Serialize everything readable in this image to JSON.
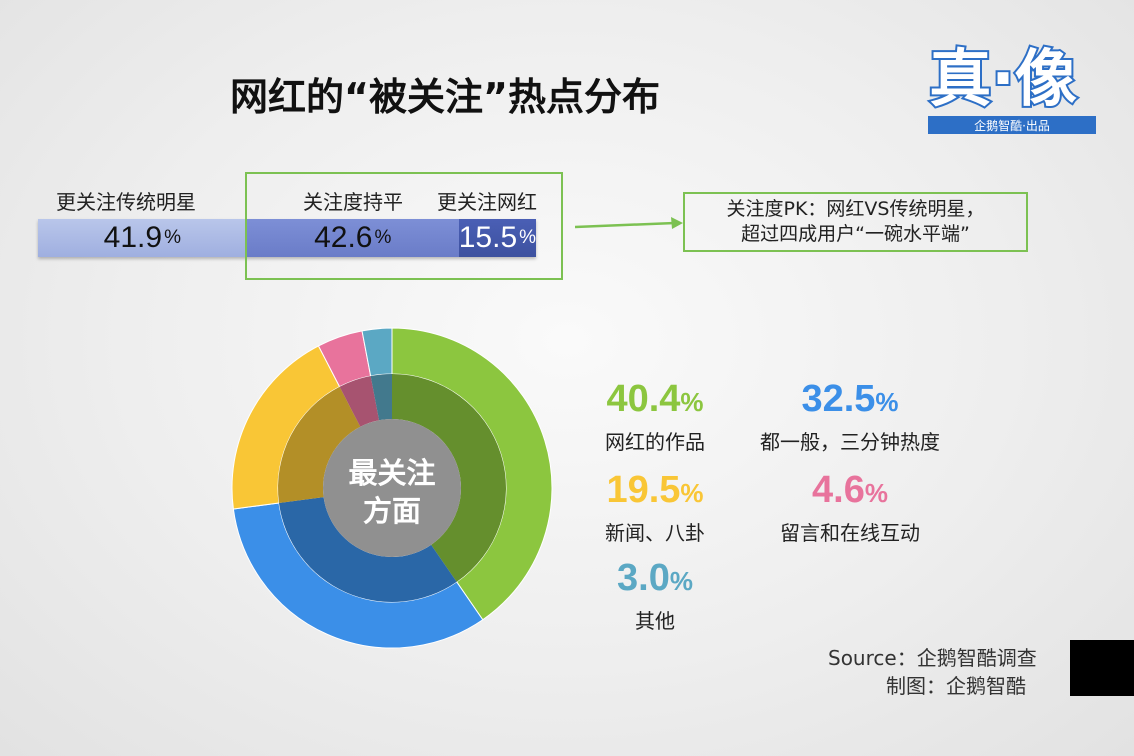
{
  "title": "网红的“被关注”热点分布",
  "logo": {
    "main": "真·像",
    "sub": "企鹅智酷·出品"
  },
  "top_bar": {
    "labels": [
      "更关注传统明星",
      "关注度持平",
      "更关注网红"
    ],
    "segments": [
      {
        "value": 41.9,
        "text": "41.9",
        "color": "#a9b7e5"
      },
      {
        "value": 42.6,
        "text": "42.6",
        "color": "#7587cf"
      },
      {
        "value": 15.5,
        "text": "15.5",
        "color": "#4458aa"
      }
    ],
    "unit": "%"
  },
  "callout": {
    "line1": "关注度PK：网红VS传统明星，",
    "line2": "超过四成用户“一碗水平端”"
  },
  "chart_data": {
    "type": "pie",
    "title": "",
    "center_label": [
      "最关注",
      "方面"
    ],
    "series": [
      {
        "label": "网红的作品",
        "value": 40.4,
        "text": "40.4",
        "color": "#8cc63f"
      },
      {
        "label": "都一般，三分钟热度",
        "value": 32.5,
        "text": "32.5",
        "color": "#3b8fe8"
      },
      {
        "label": "新闻、八卦",
        "value": 19.5,
        "text": "19.5",
        "color": "#f9c636"
      },
      {
        "label": "留言和在线互动",
        "value": 4.6,
        "text": "4.6",
        "color": "#e8739c"
      },
      {
        "label": "其他",
        "value": 3.0,
        "text": "3.0",
        "color": "#5ba8c4"
      }
    ],
    "unit": "%"
  },
  "footer": {
    "source": "Source：企鹅智酷调查",
    "credit": "制图：企鹅智酷"
  }
}
